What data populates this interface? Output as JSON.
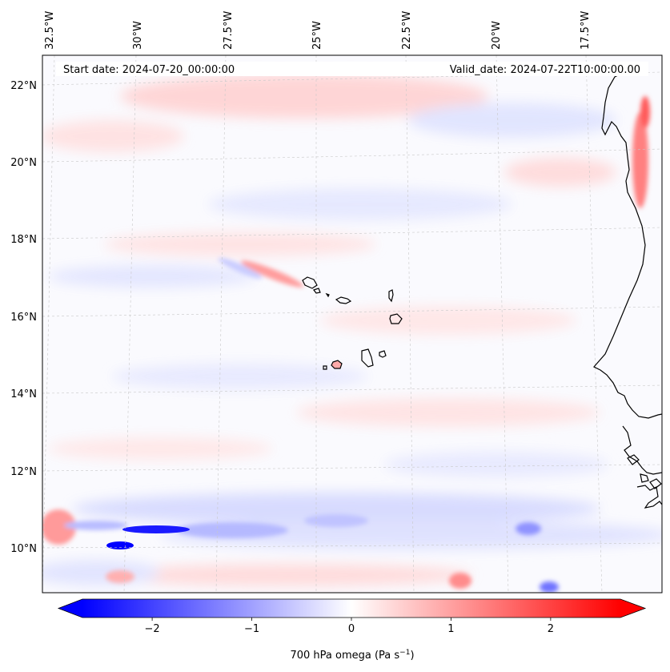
{
  "header": {
    "start_date": "Start date: 2024-07-20_00:00:00",
    "valid_date": "Valid_date: 2024-07-22T10:00:00.00"
  },
  "map": {
    "projection": "lambert-conformal",
    "lon_range": [
      -32.9,
      -15.2
    ],
    "lat_range": [
      8.9,
      22.8
    ],
    "longitude_labels": [
      {
        "lon": -32.5,
        "text": "32.5°W"
      },
      {
        "lon": -30.0,
        "text": "30°W"
      },
      {
        "lon": -27.5,
        "text": "27.5°W"
      },
      {
        "lon": -25.0,
        "text": "25°W"
      },
      {
        "lon": -22.5,
        "text": "22.5°W"
      },
      {
        "lon": -20.0,
        "text": "20°W"
      },
      {
        "lon": -17.5,
        "text": "17.5°W"
      }
    ],
    "latitude_labels": [
      {
        "lat": 22,
        "text": "22°N"
      },
      {
        "lat": 20,
        "text": "20°N"
      },
      {
        "lat": 18,
        "text": "18°N"
      },
      {
        "lat": 16,
        "text": "16°N"
      },
      {
        "lat": 14,
        "text": "14°N"
      },
      {
        "lat": 12,
        "text": "12°N"
      },
      {
        "lat": 10,
        "text": "10°N"
      }
    ],
    "gridlines": "dashed light grey",
    "field_colormap": "bwr",
    "coastline_color": "#000000"
  },
  "colorbar": {
    "label_prefix": "700 hPa omega (Pa s",
    "label_exponent": "−1",
    "label_suffix": ")",
    "vmin": -2.7,
    "vmax": 2.7,
    "extend": "both",
    "ticks": [
      {
        "value": -2,
        "text": "−2"
      },
      {
        "value": -1,
        "text": "−1"
      },
      {
        "value": 0,
        "text": "0"
      },
      {
        "value": 1,
        "text": "1"
      },
      {
        "value": 2,
        "text": "2"
      }
    ],
    "colors": {
      "min": "#0000ff",
      "mid": "#ffffff",
      "max": "#ff0000"
    }
  }
}
